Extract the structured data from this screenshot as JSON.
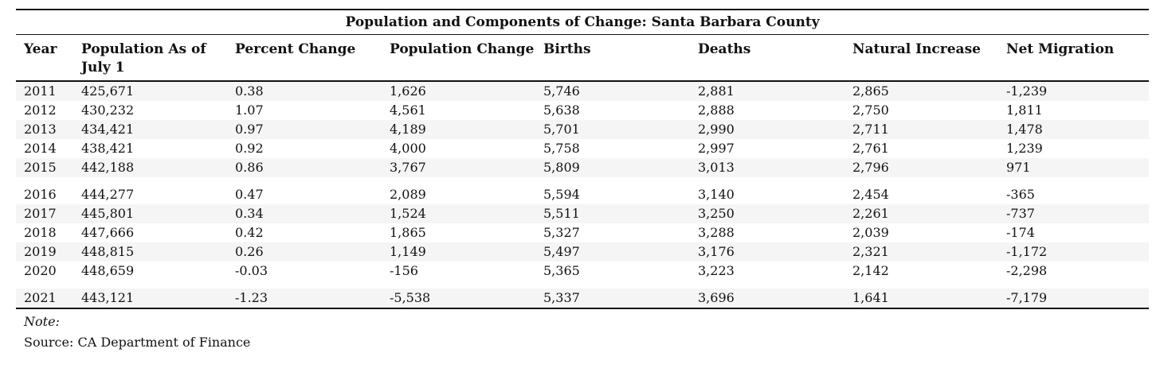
{
  "table": {
    "title": "Population and Components of Change: Santa Barbara County",
    "headers": [
      "Year",
      "Population As of July 1",
      "Percent Change",
      "Population Change",
      "Births",
      "Deaths",
      "Natural Increase",
      "Net Migration"
    ],
    "rows": [
      [
        "2011",
        "425,671",
        "0.38",
        "1,626",
        "5,746",
        "2,881",
        "2,865",
        "-1,239"
      ],
      [
        "2012",
        "430,232",
        "1.07",
        "4,561",
        "5,638",
        "2,888",
        "2,750",
        "1,811"
      ],
      [
        "2013",
        "434,421",
        "0.97",
        "4,189",
        "5,701",
        "2,990",
        "2,711",
        "1,478"
      ],
      [
        "2014",
        "438,421",
        "0.92",
        "4,000",
        "5,758",
        "2,997",
        "2,761",
        "1,239"
      ],
      [
        "2015",
        "442,188",
        "0.86",
        "3,767",
        "5,809",
        "3,013",
        "2,796",
        "971"
      ],
      [
        "2016",
        "444,277",
        "0.47",
        "2,089",
        "5,594",
        "3,140",
        "2,454",
        "-365"
      ],
      [
        "2017",
        "445,801",
        "0.34",
        "1,524",
        "5,511",
        "3,250",
        "2,261",
        "-737"
      ],
      [
        "2018",
        "447,666",
        "0.42",
        "1,865",
        "5,327",
        "3,288",
        "2,039",
        "-174"
      ],
      [
        "2019",
        "448,815",
        "0.26",
        "1,149",
        "5,497",
        "3,176",
        "2,321",
        "-1,172"
      ],
      [
        "2020",
        "448,659",
        "-0.03",
        "-156",
        "5,365",
        "3,223",
        "2,142",
        "-2,298"
      ],
      [
        "2021",
        "443,121",
        "-1.23",
        "-5,538",
        "5,337",
        "3,696",
        "1,641",
        "-7,179"
      ]
    ]
  },
  "notes": {
    "label": "Note:",
    "source": "Source: CA Department of Finance"
  }
}
